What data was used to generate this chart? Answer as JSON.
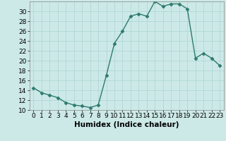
{
  "x": [
    0,
    1,
    2,
    3,
    4,
    5,
    6,
    7,
    8,
    9,
    10,
    11,
    12,
    13,
    14,
    15,
    16,
    17,
    18,
    19,
    20,
    21,
    22,
    23
  ],
  "y": [
    14.5,
    13.5,
    13.0,
    12.5,
    11.5,
    11.0,
    10.8,
    10.5,
    11.0,
    17.0,
    23.5,
    26.0,
    29.0,
    29.5,
    29.0,
    32.0,
    31.0,
    31.5,
    31.5,
    30.5,
    20.5,
    21.5,
    20.5,
    19.0
  ],
  "line_color": "#2d7a6e",
  "marker": "D",
  "marker_size": 2.5,
  "bg_color": "#cce9e7",
  "grid_color": "#b0d8d5",
  "xlabel": "Humidex (Indice chaleur)",
  "ylabel": "",
  "xlim": [
    -0.5,
    23.5
  ],
  "ylim": [
    10,
    32
  ],
  "yticks": [
    10,
    12,
    14,
    16,
    18,
    20,
    22,
    24,
    26,
    28,
    30
  ],
  "xticks": [
    0,
    1,
    2,
    3,
    4,
    5,
    6,
    7,
    8,
    9,
    10,
    11,
    12,
    13,
    14,
    15,
    16,
    17,
    18,
    19,
    20,
    21,
    22,
    23
  ],
  "xlabel_fontsize": 7.5,
  "tick_fontsize": 6.5,
  "spine_color": "#888888",
  "line_width": 1.0
}
